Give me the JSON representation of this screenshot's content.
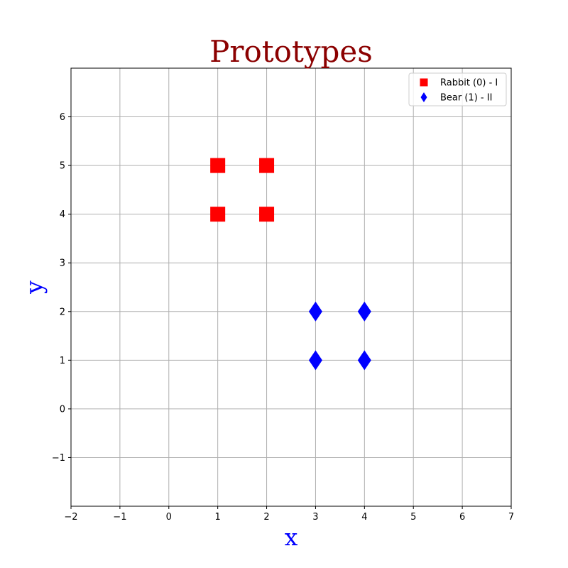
{
  "chart_data": {
    "type": "scatter",
    "title": "Prototypes",
    "xlabel": "x",
    "ylabel": "y",
    "xlim": [
      -2,
      7
    ],
    "ylim": [
      -2,
      7
    ],
    "xticks": [
      -2,
      -1,
      0,
      1,
      2,
      3,
      4,
      5,
      6,
      7
    ],
    "yticks": [
      -1,
      0,
      1,
      2,
      3,
      4,
      5,
      6
    ],
    "grid": true,
    "legend_position": "top-right",
    "series": [
      {
        "name": "Rabbit (0) - I",
        "marker": "square",
        "color": "#ff0000",
        "points": [
          [
            1,
            5
          ],
          [
            2,
            5
          ],
          [
            1,
            4
          ],
          [
            2,
            4
          ]
        ]
      },
      {
        "name": "Bear (1) - II",
        "marker": "diamond",
        "color": "#0000ff",
        "points": [
          [
            3,
            2
          ],
          [
            4,
            2
          ],
          [
            3,
            1
          ],
          [
            4,
            1
          ]
        ]
      }
    ],
    "colors": {
      "title": "#8b0000",
      "axis_labels": "#0000ff",
      "grid": "#b0b0b0"
    }
  }
}
